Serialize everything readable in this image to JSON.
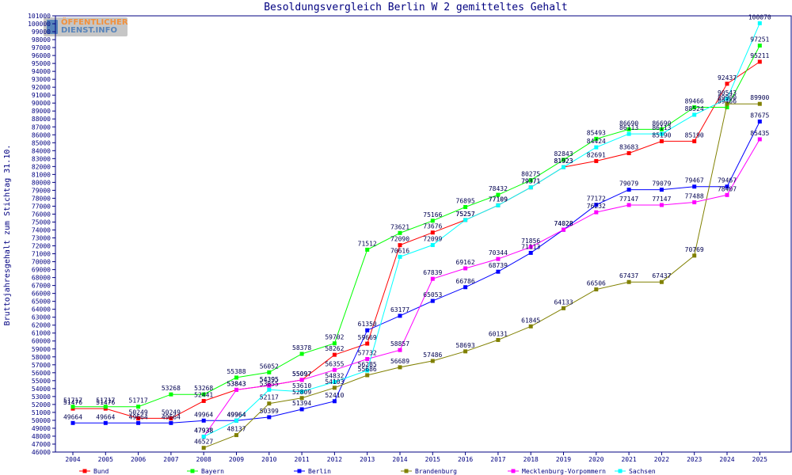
{
  "logo": {
    "line1": "ÖFFENTLICHER",
    "line2": "DIENST.INFO"
  },
  "chart_data": {
    "type": "line",
    "title": "Besoldungsvergleich Berlin W 2 gemitteltes Gehalt",
    "xlabel": "",
    "ylabel": "Bruttojahresgehalt zum Stichtag 31.10.",
    "ylim": [
      46000,
      101000
    ],
    "ytick_step": 1000,
    "grid": false,
    "legend_position": "bottom",
    "categories": [
      "2004",
      "2005",
      "2006",
      "2007",
      "2008",
      "2009",
      "2010",
      "2011",
      "2012",
      "2013",
      "2014",
      "2015",
      "2016",
      "2017",
      "2018",
      "2019",
      "2020",
      "2021",
      "2022",
      "2023",
      "2024",
      "2025"
    ],
    "series": [
      {
        "name": "Bund",
        "color": "#ff0000",
        "values": [
          51476,
          51476,
          50249,
          50249,
          52441,
          53843,
          54395,
          55097,
          58262,
          59669,
          72090,
          73676,
          75257,
          77109,
          79371,
          81923,
          82691,
          83683,
          85190,
          85190,
          92437,
          95211
        ]
      },
      {
        "name": "Bayern",
        "color": "#00ff00",
        "values": [
          51717,
          51717,
          51717,
          53268,
          53268,
          55388,
          56052,
          58378,
          59702,
          71512,
          73621,
          75166,
          76895,
          78432,
          80275,
          82843,
          85493,
          86690,
          86690,
          89466,
          89466,
          97251
        ]
      },
      {
        "name": "Berlin",
        "color": "#0000ff",
        "values": [
          49664,
          49664,
          49664,
          49664,
          49964,
          49964,
          50399,
          51394,
          52410,
          61350,
          63177,
          65053,
          66786,
          68739,
          71113,
          74028,
          77172,
          79079,
          79079,
          79467,
          79467,
          87675
        ]
      },
      {
        "name": "Brandenburg",
        "color": "#808000",
        "values": [
          null,
          null,
          null,
          null,
          46527,
          48137,
          52117,
          52809,
          54103,
          55686,
          56689,
          57486,
          58693,
          60131,
          61845,
          64133,
          66506,
          67437,
          67437,
          70769,
          89900,
          89900
        ]
      },
      {
        "name": "Mecklenburg-Vorpommern",
        "color": "#ff00ff",
        "values": [
          null,
          null,
          null,
          null,
          47938,
          53843,
          54395,
          55097,
          56355,
          57732,
          58857,
          67839,
          69162,
          70344,
          71856,
          74028,
          76232,
          77147,
          77147,
          77488,
          78407,
          85435
        ]
      },
      {
        "name": "Sachsen",
        "color": "#00ffff",
        "values": [
          null,
          null,
          null,
          null,
          47938,
          49964,
          53855,
          53610,
          54832,
          56285,
          70616,
          72099,
          75257,
          77109,
          79371,
          81923,
          84424,
          86113,
          86113,
          88524,
          90543,
          100070
        ]
      }
    ]
  }
}
